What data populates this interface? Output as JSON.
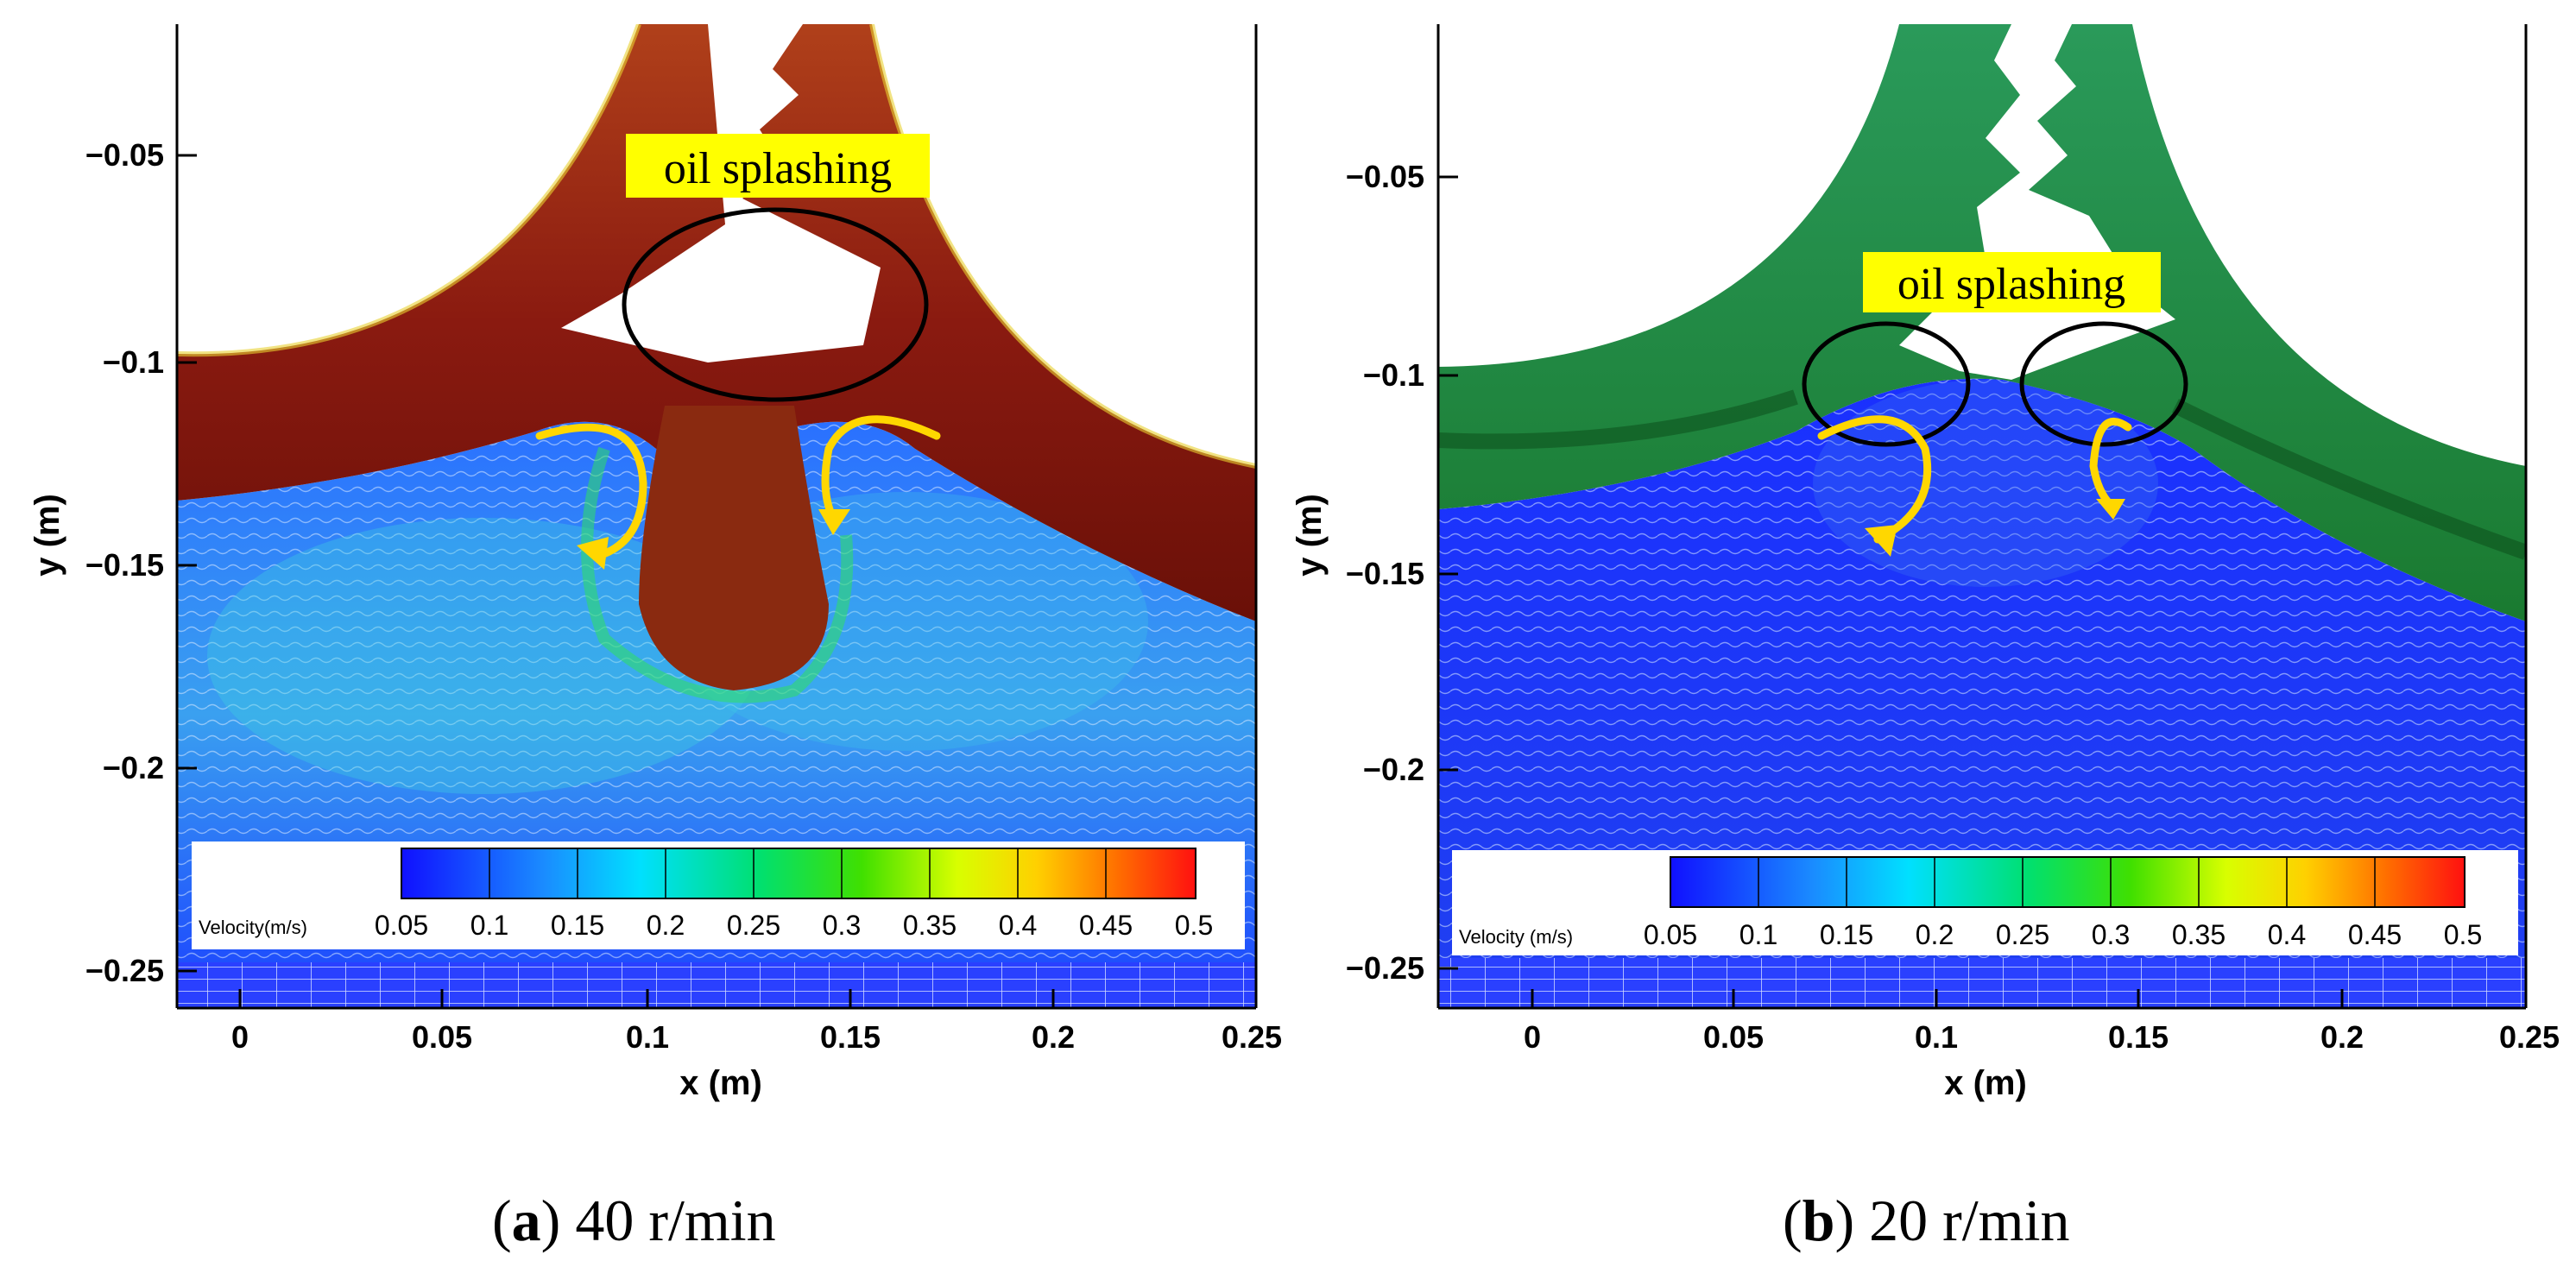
{
  "panels": [
    {
      "id": "a",
      "xlabel": "x (m)",
      "ylabel": "y (m)",
      "x_ticks": [
        "0",
        "0.05",
        "0.1",
        "0.15",
        "0.2",
        "0.25"
      ],
      "y_ticks": [
        "−0.05",
        "−0.1",
        "−0.15",
        "−0.2",
        "−0.25"
      ],
      "annotation": "oil splashing",
      "colorbar_title": "Velocity(m/s)",
      "colorbar_ticks": [
        "0.05",
        "0.1",
        "0.15",
        "0.2",
        "0.25",
        "0.3",
        "0.35",
        "0.4",
        "0.45",
        "0.5"
      ],
      "caption_letter": "a",
      "caption_text": "40 r/min"
    },
    {
      "id": "b",
      "xlabel": "x (m)",
      "ylabel": "y (m)",
      "x_ticks": [
        "0",
        "0.05",
        "0.1",
        "0.15",
        "0.2",
        "0.25"
      ],
      "y_ticks": [
        "−0.05",
        "−0.1",
        "−0.15",
        "−0.2",
        "−0.25"
      ],
      "annotation": "oil splashing",
      "colorbar_title": "Velocity (m/s)",
      "colorbar_ticks": [
        "0.05",
        "0.1",
        "0.15",
        "0.2",
        "0.25",
        "0.3",
        "0.35",
        "0.4",
        "0.45",
        "0.5"
      ],
      "caption_letter": "b",
      "caption_text": "20 r/min"
    }
  ],
  "colors": {
    "highlight": "#ffff00",
    "arrow": "#ffd700",
    "ellipse": "#000000",
    "fluid_low": "#1a3cff",
    "fluid_mid": "#20c020",
    "fluid_high": "#d01010"
  }
}
